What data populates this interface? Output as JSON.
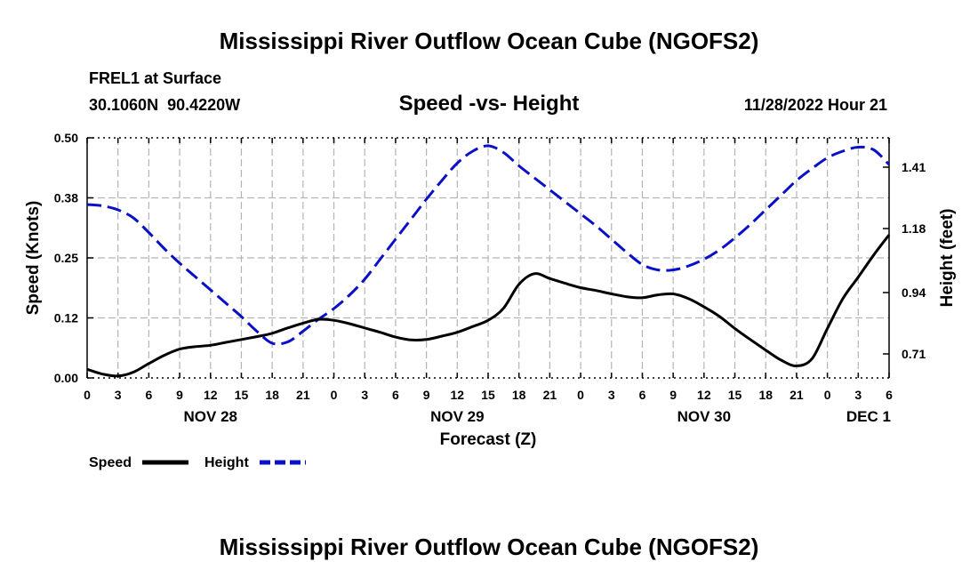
{
  "header": {
    "title": "Mississippi River Outflow Ocean Cube (NGOFS2)",
    "station": "FREL1 at Surface",
    "coordinates": "30.1060N  90.4220W",
    "subtitle": "Speed -vs- Height",
    "datetime": "11/28/2022 Hour 21"
  },
  "footer": {
    "title": "Mississippi River Outflow Ocean Cube (NGOFS2)"
  },
  "colors": {
    "speed": "#000000",
    "height": "#0a10c8",
    "grid": "#b4b4b4"
  },
  "chart_data": {
    "type": "line",
    "title": "Speed -vs- Height",
    "xlabel": "Forecast (Z)",
    "ylabel": "Speed (Knots)",
    "y2label": "Height (feet)",
    "xlim": [
      0,
      78
    ],
    "ylim": [
      0,
      0.5
    ],
    "y2lim": [
      0.62,
      1.52
    ],
    "x_ticks": [
      0,
      3,
      6,
      9,
      12,
      15,
      18,
      21,
      24,
      27,
      30,
      33,
      36,
      39,
      42,
      45,
      48,
      51,
      54,
      57,
      60,
      63,
      66,
      69,
      72,
      75,
      78
    ],
    "x_tick_labels": [
      "0",
      "3",
      "6",
      "9",
      "12",
      "15",
      "18",
      "21",
      "0",
      "3",
      "6",
      "9",
      "12",
      "15",
      "18",
      "21",
      "0",
      "3",
      "6",
      "9",
      "12",
      "15",
      "18",
      "21",
      "0",
      "3",
      "6"
    ],
    "y_ticks": [
      0,
      0.125,
      0.25,
      0.375,
      0.5
    ],
    "y_tick_labels": [
      "0.00",
      "0.12",
      "0.25",
      "0.38",
      "0.50"
    ],
    "y2_ticks": [
      0.71,
      0.94,
      1.18,
      1.41
    ],
    "y2_tick_labels": [
      "0.71",
      "0.94",
      "1.18",
      "1.41"
    ],
    "day_labels": [
      {
        "x": 12,
        "label": "NOV 28"
      },
      {
        "x": 36,
        "label": "NOV 29"
      },
      {
        "x": 60,
        "label": "NOV 30"
      },
      {
        "x": 76,
        "label": "DEC 1"
      }
    ],
    "series": [
      {
        "name": "Speed",
        "axis": "left",
        "style": "solid",
        "x": [
          0,
          1.5,
          3,
          4.5,
          6,
          7.5,
          9,
          10.5,
          12,
          13.5,
          15,
          16.5,
          18,
          19.5,
          21,
          22.5,
          24,
          25.5,
          27,
          28.5,
          30,
          31.5,
          33,
          34.5,
          36,
          37.5,
          39,
          40.5,
          42,
          43.5,
          45,
          46.5,
          48,
          49.5,
          51,
          52.5,
          54,
          55.5,
          57,
          58.5,
          60,
          61.5,
          63,
          64.5,
          66,
          67.5,
          69,
          70.5,
          72,
          73.5,
          75,
          76.5,
          78
        ],
        "values": [
          0.018,
          0.008,
          0.004,
          0.012,
          0.03,
          0.047,
          0.06,
          0.065,
          0.068,
          0.074,
          0.08,
          0.086,
          0.093,
          0.104,
          0.114,
          0.122,
          0.12,
          0.113,
          0.104,
          0.095,
          0.085,
          0.079,
          0.08,
          0.087,
          0.095,
          0.107,
          0.12,
          0.145,
          0.195,
          0.217,
          0.207,
          0.197,
          0.188,
          0.182,
          0.175,
          0.169,
          0.167,
          0.173,
          0.175,
          0.165,
          0.148,
          0.128,
          0.103,
          0.08,
          0.058,
          0.037,
          0.025,
          0.04,
          0.103,
          0.165,
          0.21,
          0.256,
          0.298
        ]
      },
      {
        "name": "Height",
        "axis": "right",
        "style": "dashed",
        "x": [
          0,
          1.5,
          3,
          4.5,
          6,
          7.5,
          9,
          10.5,
          12,
          13.5,
          15,
          16.5,
          18,
          19.5,
          21,
          22.5,
          24,
          25.5,
          27,
          28.5,
          30,
          31.5,
          33,
          34.5,
          36,
          37.5,
          39,
          40.5,
          42,
          43.5,
          45,
          46.5,
          48,
          49.5,
          51,
          52.5,
          54,
          55.5,
          57,
          58.5,
          60,
          61.5,
          63,
          64.5,
          66,
          67.5,
          69,
          70.5,
          72,
          73.5,
          75,
          76.5,
          78
        ],
        "values": [
          1.27,
          1.265,
          1.25,
          1.22,
          1.165,
          1.105,
          1.05,
          1.0,
          0.95,
          0.9,
          0.85,
          0.795,
          0.75,
          0.755,
          0.795,
          0.84,
          0.88,
          0.93,
          0.99,
          1.065,
          1.14,
          1.215,
          1.29,
          1.36,
          1.425,
          1.47,
          1.49,
          1.465,
          1.415,
          1.37,
          1.325,
          1.28,
          1.235,
          1.19,
          1.14,
          1.09,
          1.045,
          1.025,
          1.025,
          1.04,
          1.065,
          1.1,
          1.145,
          1.195,
          1.25,
          1.305,
          1.36,
          1.405,
          1.445,
          1.47,
          1.485,
          1.475,
          1.42
        ]
      }
    ],
    "legend": [
      "Speed",
      "Height"
    ]
  }
}
